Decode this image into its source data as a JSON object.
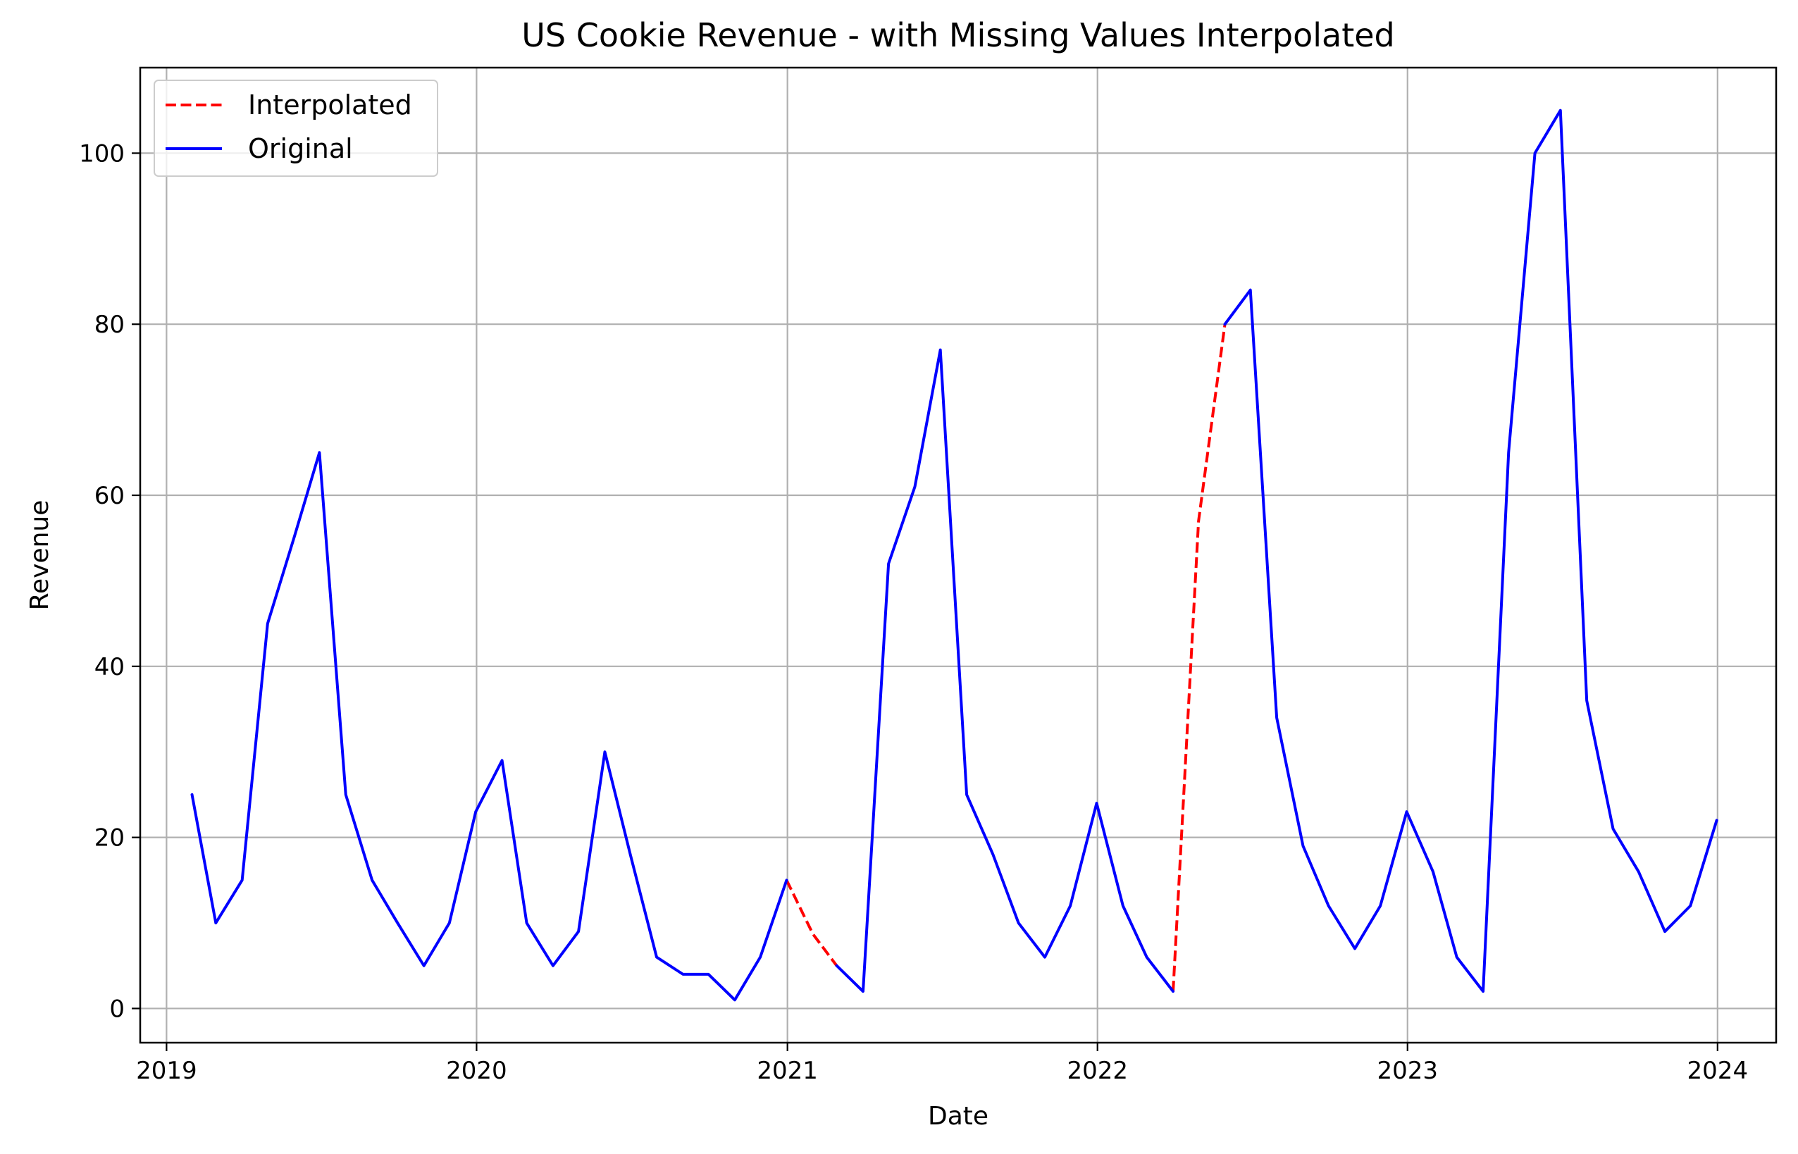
{
  "chart_data": {
    "type": "line",
    "title": "US Cookie Revenue - with Missing Values Interpolated",
    "xlabel": "Date",
    "ylabel": "Revenue",
    "xlim": [
      "2018-12-01",
      "2024-03-10"
    ],
    "ylim": [
      -4,
      110
    ],
    "grid": true,
    "legend_position": "top-left",
    "x_ticks": [
      {
        "value": "2019-01-01",
        "label": "2019"
      },
      {
        "value": "2020-01-01",
        "label": "2020"
      },
      {
        "value": "2021-01-01",
        "label": "2021"
      },
      {
        "value": "2022-01-01",
        "label": "2022"
      },
      {
        "value": "2023-01-01",
        "label": "2023"
      },
      {
        "value": "2024-01-01",
        "label": "2024"
      }
    ],
    "y_ticks": [
      0,
      20,
      40,
      60,
      80,
      100
    ],
    "colors": {
      "original": "#0000ff",
      "interpolated": "#ff0000",
      "grid": "#b0b0b0"
    },
    "series": [
      {
        "name": "Interpolated",
        "style": "dashed",
        "color": "#ff0000",
        "segments": [
          [
            {
              "x": "2020-12-31",
              "y": 15
            },
            {
              "x": "2021-01-31",
              "y": 8.7
            },
            {
              "x": "2021-02-28",
              "y": 5
            }
          ],
          [
            {
              "x": "2022-03-31",
              "y": 2
            },
            {
              "x": "2022-04-30",
              "y": 57
            },
            {
              "x": "2022-05-31",
              "y": 80
            }
          ]
        ]
      },
      {
        "name": "Original",
        "style": "solid",
        "color": "#0000ff",
        "segments": [
          [
            {
              "x": "2019-01-31",
              "y": 25
            },
            {
              "x": "2019-02-28",
              "y": 10
            },
            {
              "x": "2019-03-31",
              "y": 15
            },
            {
              "x": "2019-04-30",
              "y": 45
            },
            {
              "x": "2019-05-31",
              "y": 55
            },
            {
              "x": "2019-06-30",
              "y": 65
            },
            {
              "x": "2019-07-31",
              "y": 25
            },
            {
              "x": "2019-08-31",
              "y": 15
            },
            {
              "x": "2019-09-30",
              "y": 10
            },
            {
              "x": "2019-10-31",
              "y": 5
            },
            {
              "x": "2019-11-30",
              "y": 10
            },
            {
              "x": "2019-12-31",
              "y": 23
            },
            {
              "x": "2020-01-31",
              "y": 29
            },
            {
              "x": "2020-02-29",
              "y": 10
            },
            {
              "x": "2020-03-31",
              "y": 5
            },
            {
              "x": "2020-04-30",
              "y": 9
            },
            {
              "x": "2020-05-31",
              "y": 30
            },
            {
              "x": "2020-06-30",
              "y": 18
            },
            {
              "x": "2020-07-31",
              "y": 6
            },
            {
              "x": "2020-08-31",
              "y": 4
            },
            {
              "x": "2020-09-30",
              "y": 4
            },
            {
              "x": "2020-10-31",
              "y": 1
            },
            {
              "x": "2020-11-30",
              "y": 6
            },
            {
              "x": "2020-12-31",
              "y": 15
            }
          ],
          [
            {
              "x": "2021-02-28",
              "y": 5
            },
            {
              "x": "2021-03-31",
              "y": 2
            },
            {
              "x": "2021-04-30",
              "y": 52
            },
            {
              "x": "2021-05-31",
              "y": 61
            },
            {
              "x": "2021-06-30",
              "y": 77
            },
            {
              "x": "2021-07-31",
              "y": 25
            },
            {
              "x": "2021-08-31",
              "y": 18
            },
            {
              "x": "2021-09-30",
              "y": 10
            },
            {
              "x": "2021-10-31",
              "y": 6
            },
            {
              "x": "2021-11-30",
              "y": 12
            },
            {
              "x": "2021-12-31",
              "y": 24
            },
            {
              "x": "2022-01-31",
              "y": 12
            },
            {
              "x": "2022-02-28",
              "y": 6
            },
            {
              "x": "2022-03-31",
              "y": 2
            }
          ],
          [
            {
              "x": "2022-05-31",
              "y": 80
            },
            {
              "x": "2022-06-30",
              "y": 84
            },
            {
              "x": "2022-07-31",
              "y": 34
            },
            {
              "x": "2022-08-31",
              "y": 19
            },
            {
              "x": "2022-09-30",
              "y": 12
            },
            {
              "x": "2022-10-31",
              "y": 7
            },
            {
              "x": "2022-11-30",
              "y": 12
            },
            {
              "x": "2022-12-31",
              "y": 23
            },
            {
              "x": "2023-01-31",
              "y": 16
            },
            {
              "x": "2023-02-28",
              "y": 6
            },
            {
              "x": "2023-03-31",
              "y": 2
            },
            {
              "x": "2023-04-30",
              "y": 65
            },
            {
              "x": "2023-05-31",
              "y": 100
            },
            {
              "x": "2023-06-30",
              "y": 105
            },
            {
              "x": "2023-07-31",
              "y": 36
            },
            {
              "x": "2023-08-31",
              "y": 21
            },
            {
              "x": "2023-09-30",
              "y": 16
            },
            {
              "x": "2023-10-31",
              "y": 9
            },
            {
              "x": "2023-11-30",
              "y": 12
            },
            {
              "x": "2023-12-31",
              "y": 22
            }
          ]
        ]
      }
    ]
  }
}
